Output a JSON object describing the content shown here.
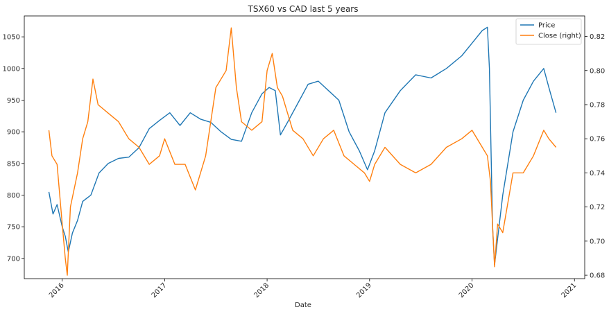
{
  "chart_data": {
    "type": "line",
    "title": "TSX60 vs CAD last 5 years",
    "xlabel": "Date",
    "ylabel": "",
    "ylabel_right": "",
    "x_ticks": [
      "2016",
      "2017",
      "2018",
      "2019",
      "2020",
      "2021"
    ],
    "x_tick_values": [
      2016.0,
      2017.0,
      2018.0,
      2019.0,
      2020.0,
      2021.0
    ],
    "xlim": [
      2015.63,
      2021.1
    ],
    "y_left": {
      "ticks": [
        700,
        750,
        800,
        850,
        900,
        950,
        1000,
        1050
      ],
      "ylim": [
        668,
        1083
      ]
    },
    "y_right": {
      "ticks": [
        "0.68",
        "0.70",
        "0.72",
        "0.74",
        "0.76",
        "0.78",
        "0.80",
        "0.82"
      ],
      "tick_values": [
        0.68,
        0.7,
        0.72,
        0.74,
        0.76,
        0.78,
        0.8,
        0.82
      ],
      "ylim": [
        0.678,
        0.832
      ]
    },
    "legend": {
      "placement": "top-right",
      "entries": [
        "Price",
        "Close (right)"
      ]
    },
    "grid": false,
    "series": [
      {
        "name": "Price",
        "axis": "left",
        "color": "#1f77b4",
        "x": [
          2015.87,
          2015.91,
          2015.95,
          2016.0,
          2016.03,
          2016.06,
          2016.1,
          2016.15,
          2016.2,
          2016.28,
          2016.36,
          2016.45,
          2016.55,
          2016.65,
          2016.75,
          2016.85,
          2016.95,
          2017.05,
          2017.15,
          2017.25,
          2017.35,
          2017.45,
          2017.55,
          2017.65,
          2017.75,
          2017.85,
          2017.95,
          2018.02,
          2018.08,
          2018.13,
          2018.2,
          2018.3,
          2018.4,
          2018.5,
          2018.6,
          2018.7,
          2018.8,
          2018.9,
          2018.98,
          2019.05,
          2019.15,
          2019.3,
          2019.45,
          2019.6,
          2019.75,
          2019.9,
          2020.0,
          2020.1,
          2020.15,
          2020.17,
          2020.2,
          2020.22,
          2020.3,
          2020.4,
          2020.5,
          2020.6,
          2020.7,
          2020.75,
          2020.82
        ],
        "values": [
          805,
          770,
          785,
          750,
          735,
          710,
          740,
          760,
          790,
          800,
          835,
          850,
          858,
          860,
          875,
          905,
          918,
          930,
          910,
          930,
          920,
          915,
          900,
          888,
          885,
          930,
          960,
          970,
          965,
          895,
          915,
          945,
          975,
          980,
          965,
          950,
          900,
          870,
          840,
          870,
          930,
          965,
          990,
          985,
          1000,
          1020,
          1040,
          1060,
          1065,
          1000,
          750,
          690,
          800,
          900,
          950,
          980,
          1000,
          970,
          930
        ]
      },
      {
        "name": "Close (right)",
        "axis": "right",
        "color": "#ff7f0e",
        "x": [
          2015.87,
          2015.9,
          2015.95,
          2016.0,
          2016.03,
          2016.05,
          2016.08,
          2016.15,
          2016.2,
          2016.25,
          2016.3,
          2016.35,
          2016.45,
          2016.55,
          2016.65,
          2016.75,
          2016.85,
          2016.95,
          2017.0,
          2017.1,
          2017.2,
          2017.3,
          2017.35,
          2017.4,
          2017.5,
          2017.6,
          2017.65,
          2017.7,
          2017.75,
          2017.85,
          2017.95,
          2018.0,
          2018.05,
          2018.1,
          2018.15,
          2018.25,
          2018.35,
          2018.45,
          2018.55,
          2018.65,
          2018.75,
          2018.85,
          2018.95,
          2019.0,
          2019.05,
          2019.15,
          2019.3,
          2019.45,
          2019.6,
          2019.75,
          2019.9,
          2020.0,
          2020.1,
          2020.15,
          2020.18,
          2020.22,
          2020.25,
          2020.3,
          2020.4,
          2020.5,
          2020.6,
          2020.7,
          2020.75,
          2020.82
        ],
        "values": [
          0.765,
          0.75,
          0.745,
          0.71,
          0.69,
          0.68,
          0.72,
          0.74,
          0.76,
          0.77,
          0.795,
          0.78,
          0.775,
          0.77,
          0.76,
          0.755,
          0.745,
          0.75,
          0.76,
          0.745,
          0.745,
          0.73,
          0.74,
          0.75,
          0.79,
          0.8,
          0.825,
          0.79,
          0.77,
          0.765,
          0.77,
          0.8,
          0.81,
          0.79,
          0.785,
          0.765,
          0.76,
          0.75,
          0.76,
          0.765,
          0.75,
          0.745,
          0.74,
          0.735,
          0.745,
          0.755,
          0.745,
          0.74,
          0.745,
          0.755,
          0.76,
          0.765,
          0.755,
          0.75,
          0.735,
          0.685,
          0.71,
          0.705,
          0.74,
          0.74,
          0.75,
          0.765,
          0.76,
          0.755
        ]
      }
    ]
  }
}
